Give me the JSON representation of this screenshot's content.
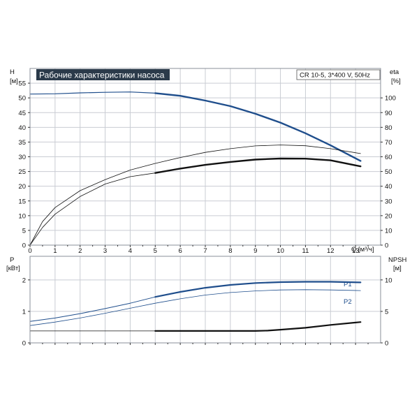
{
  "chart_data": [
    {
      "type": "line",
      "title": "Рабочие характеристики насоса",
      "info": "CR 10-5, 3*400 V, 50Hz",
      "xlabel": "Q [м³/ч]",
      "ylabel": "H",
      "ylabel_unit": "[м]",
      "y2label": "eta",
      "y2label_unit": "[%]",
      "xlim": [
        0,
        14
      ],
      "ylim": [
        0,
        60
      ],
      "y2lim": [
        0,
        120
      ],
      "xticks": [
        0,
        1,
        2,
        3,
        4,
        5,
        6,
        7,
        8,
        9,
        10,
        11,
        12,
        13
      ],
      "yticks": [
        0,
        5,
        10,
        15,
        20,
        25,
        30,
        35,
        40,
        45,
        50,
        55
      ],
      "y2ticks": [
        0,
        10,
        20,
        30,
        40,
        50,
        60,
        70,
        80,
        90,
        100
      ],
      "grid": true,
      "series": [
        {
          "role": "H",
          "axis": "y",
          "color": "#1f4e8c",
          "width": 1.2,
          "bold_from": 5,
          "bold_width": 2.4,
          "x": [
            0,
            1,
            2,
            3,
            4,
            5,
            6,
            7,
            8,
            9,
            10,
            11,
            12,
            13.2
          ],
          "y": [
            51.3,
            51.4,
            51.7,
            51.9,
            52.0,
            51.6,
            50.7,
            49.1,
            47.2,
            44.6,
            41.6,
            38.0,
            33.9,
            28.6
          ]
        },
        {
          "role": "eta",
          "axis": "y2",
          "color": "#111111",
          "width": 0.8,
          "bold_from": 5,
          "bold_width": 2.4,
          "x": [
            0,
            0.5,
            1,
            2,
            3,
            4,
            5,
            6,
            7,
            8,
            9,
            10,
            11,
            12,
            13.2
          ],
          "y": [
            0,
            12,
            21,
            33,
            41.5,
            46.5,
            49,
            52,
            54.5,
            56.5,
            58.1,
            58.8,
            58.7,
            57.6,
            53.5
          ]
        },
        {
          "role": "eta-p",
          "axis": "y2",
          "color": "#111111",
          "width": 0.8,
          "x": [
            0,
            0.5,
            1,
            2,
            3,
            4,
            5,
            6,
            7,
            8,
            9,
            10,
            11,
            12,
            13.2
          ],
          "y": [
            0,
            16,
            25.5,
            37,
            44.5,
            51,
            55.5,
            59.5,
            63,
            65.5,
            67.4,
            68,
            67.5,
            65.5,
            62.2
          ]
        }
      ]
    },
    {
      "type": "line",
      "ylabel": "P",
      "ylabel_unit": "[кВт]",
      "y2label": "NPSH",
      "y2label_unit": "[м]",
      "xlim": [
        0,
        14
      ],
      "ylim": [
        0,
        2.75
      ],
      "y2lim": [
        0,
        13.75
      ],
      "xticks": [
        0,
        1,
        2,
        3,
        4,
        5,
        6,
        7,
        8,
        9,
        10,
        11,
        12,
        13
      ],
      "yticks": [
        0,
        1,
        2
      ],
      "y2ticks": [
        0,
        5,
        10
      ],
      "grid": true,
      "series": [
        {
          "name": "P1",
          "axis": "y",
          "color": "#1f4e8c",
          "width": 1.0,
          "bold_from": 5,
          "bold_width": 2.2,
          "x": [
            0,
            1,
            2,
            3,
            4,
            5,
            6,
            7,
            8,
            9,
            10,
            11,
            12,
            13.2
          ],
          "y": [
            0.68,
            0.79,
            0.93,
            1.09,
            1.26,
            1.46,
            1.62,
            1.75,
            1.84,
            1.9,
            1.93,
            1.94,
            1.94,
            1.92
          ]
        },
        {
          "name": "P2",
          "axis": "y",
          "color": "#1f4e8c",
          "width": 0.8,
          "x": [
            0,
            1,
            2,
            3,
            4,
            5,
            6,
            7,
            8,
            9,
            10,
            11,
            12,
            13.2
          ],
          "y": [
            0.55,
            0.66,
            0.79,
            0.94,
            1.1,
            1.26,
            1.4,
            1.52,
            1.6,
            1.65,
            1.68,
            1.69,
            1.68,
            1.66
          ]
        },
        {
          "role": "NPSH",
          "axis": "y2",
          "color": "#111111",
          "width": 0.8,
          "bold_from": 5,
          "bold_width": 2.2,
          "x": [
            0,
            1,
            2,
            3,
            4,
            5,
            6,
            7,
            8,
            9,
            9.5,
            10,
            11,
            12,
            13.2
          ],
          "y": [
            1.9,
            1.9,
            1.9,
            1.9,
            1.9,
            1.9,
            1.9,
            1.9,
            1.9,
            1.9,
            1.95,
            2.1,
            2.4,
            2.85,
            3.3
          ]
        }
      ]
    }
  ]
}
